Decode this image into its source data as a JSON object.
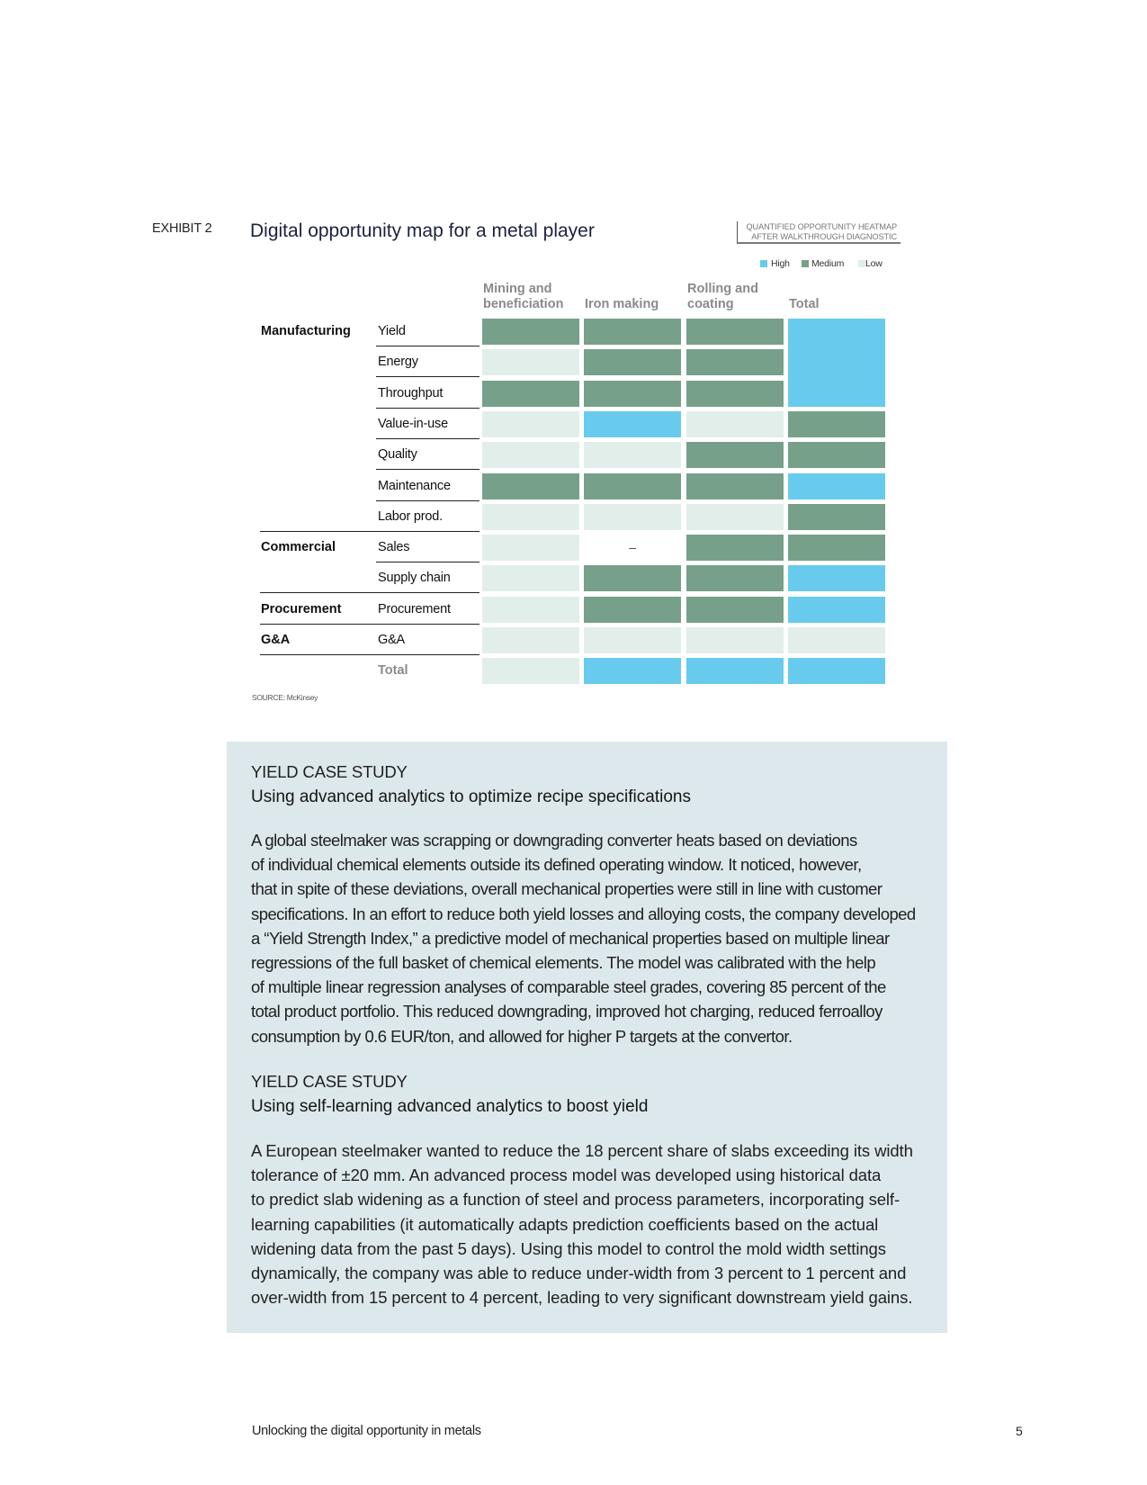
{
  "exhibit": {
    "label": "EXHIBIT 2",
    "title": "Digital opportunity map for a metal player",
    "tag_lines": [
      "QUANTIFIED OPPORTUNITY HEATMAP",
      "AFTER WALKTHROUGH DIAGNOSTIC"
    ],
    "legend": [
      {
        "label": "High",
        "color": "#68CBEE"
      },
      {
        "label": "Medium",
        "color": "#77A08A"
      },
      {
        "label": "Low",
        "color": "#E2EEEA"
      }
    ],
    "source": "SOURCE: McKinsey"
  },
  "chart_data": {
    "type": "heatmap",
    "columns": [
      "Mining and beneficiation",
      "Iron making",
      "Rolling and coating",
      "Total"
    ],
    "row_groups": [
      {
        "name": "Manufacturing",
        "rows": [
          {
            "label": "Yield",
            "values": [
              "Medium",
              "Medium",
              "Medium",
              "High"
            ]
          },
          {
            "label": "Energy",
            "values": [
              "Low",
              "Medium",
              "Medium",
              "High"
            ]
          },
          {
            "label": "Throughput",
            "values": [
              "Medium",
              "Medium",
              "Medium",
              "High"
            ]
          },
          {
            "label": "Value-in-use",
            "values": [
              "Low",
              "High",
              "Low",
              "Medium"
            ]
          },
          {
            "label": "Quality",
            "values": [
              "Low",
              "Low",
              "Medium",
              "Medium"
            ]
          },
          {
            "label": "Maintenance",
            "values": [
              "Medium",
              "Medium",
              "Medium",
              "High"
            ]
          },
          {
            "label": "Labor prod.",
            "values": [
              "Low",
              "Low",
              "Low",
              "Medium"
            ]
          }
        ]
      },
      {
        "name": "Commercial",
        "rows": [
          {
            "label": "Sales",
            "values": [
              "Low",
              "–",
              "Medium",
              "Medium"
            ]
          },
          {
            "label": "Supply chain",
            "values": [
              "Low",
              "Medium",
              "Medium",
              "High"
            ]
          }
        ]
      },
      {
        "name": "Procurement",
        "rows": [
          {
            "label": "Procurement",
            "values": [
              "Low",
              "Medium",
              "Medium",
              "High"
            ]
          }
        ]
      },
      {
        "name": "G&A",
        "rows": [
          {
            "label": "G&A",
            "values": [
              "Low",
              "Low",
              "Low",
              "Low"
            ]
          }
        ]
      },
      {
        "name": "",
        "rows": [
          {
            "label": "Total",
            "values": [
              "Low",
              "High",
              "High",
              "High"
            ]
          }
        ]
      }
    ],
    "merged_cells": [
      {
        "column_index": 3,
        "first_row": 0,
        "last_row": 2
      }
    ]
  },
  "colors": {
    "panel": "#DDE8EC"
  },
  "case_studies": [
    {
      "kicker": "YIELD CASE STUDY",
      "title": "Using advanced analytics to optimize recipe specifications",
      "lines": [
        "A global steelmaker was scrapping or downgrading converter heats based on deviations",
        "of individual chemical elements outside its defined operating window. It noticed, however,",
        "that in spite of these deviations, overall mechanical properties were still in line with customer",
        "specifications. In an effort to reduce both yield losses and alloying costs, the company developed",
        "a “Yield Strength Index,” a predictive model of mechanical properties based on multiple linear",
        "regressions of the full basket of chemical elements. The model was calibrated with the help",
        "of multiple linear regression analyses of comparable steel grades, covering 85 percent of the",
        "total product portfolio. This reduced downgrading, improved hot charging, reduced ferroalloy",
        "consumption by 0.6 EUR/ton, and allowed for higher P targets at the convertor."
      ]
    },
    {
      "kicker": "YIELD CASE STUDY",
      "title": "Using self-learning advanced analytics to boost yield",
      "lines": [
        "A European steelmaker wanted to reduce the 18 percent share of slabs exceeding its width",
        "tolerance of ±20 mm. An advanced process model was developed using historical data",
        "to predict slab widening as a function of steel and process parameters, incorporating self-",
        "learning capabilities (it automatically adapts prediction coefficients based on the actual",
        "widening data from the past 5 days). Using this model to control the mold width settings",
        "dynamically, the company was able to reduce under-width from 3 percent to 1 percent and",
        "over-width from 15 percent to 4 percent, leading to very significant downstream yield gains."
      ]
    }
  ],
  "footer": {
    "text": "Unlocking the digital opportunity in metals",
    "page": "5"
  }
}
